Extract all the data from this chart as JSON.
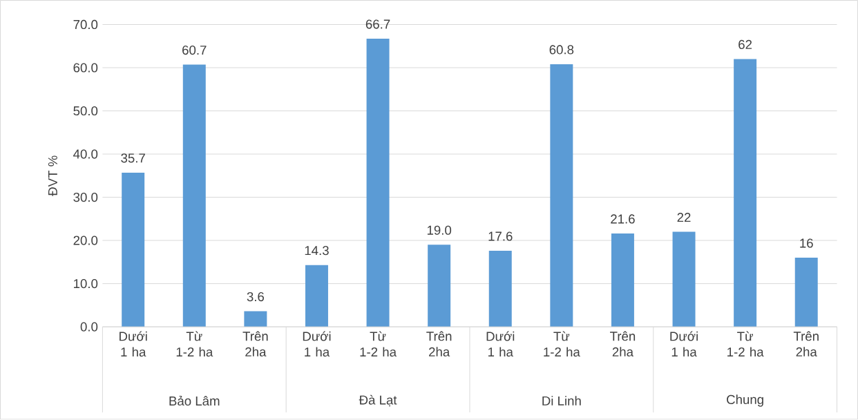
{
  "chart_data": {
    "type": "bar",
    "ylabel": "ĐVT %",
    "categories": [
      "Dưới 1 ha",
      "Từ 1-2 ha",
      "Trên 2ha",
      "Dưới 1 ha",
      "Từ 1-2 ha",
      "Trên 2ha",
      "Dưới 1 ha",
      "Từ 1-2 ha",
      "Trên 2ha",
      "Dưới 1 ha",
      "Từ 1-2 ha",
      "Trên 2ha"
    ],
    "values": [
      35.7,
      60.7,
      3.6,
      14.3,
      66.7,
      19.0,
      17.6,
      60.8,
      21.6,
      22,
      62,
      16
    ],
    "value_labels": [
      "35.7",
      "60.7",
      "3.6",
      "14.3",
      "66.7",
      "19.0",
      "17.6",
      "60.8",
      "21.6",
      "22",
      "62",
      "16"
    ],
    "color": "#5b9bd5",
    "ylim": [
      0,
      70
    ],
    "yticks": [
      {
        "value": 0,
        "label": "0.0"
      },
      {
        "value": 10,
        "label": "10.0"
      },
      {
        "value": 20,
        "label": "20.0"
      },
      {
        "value": 30,
        "label": "30.0"
      },
      {
        "value": 40,
        "label": "40.0"
      },
      {
        "value": 50,
        "label": "50.0"
      },
      {
        "value": 60,
        "label": "60.0"
      },
      {
        "value": 70,
        "label": "70.0"
      }
    ],
    "grid": "y",
    "annotations": [
      "Bảo Lâm",
      "Đà Lạt",
      "Di Linh",
      "Chung"
    ]
  }
}
